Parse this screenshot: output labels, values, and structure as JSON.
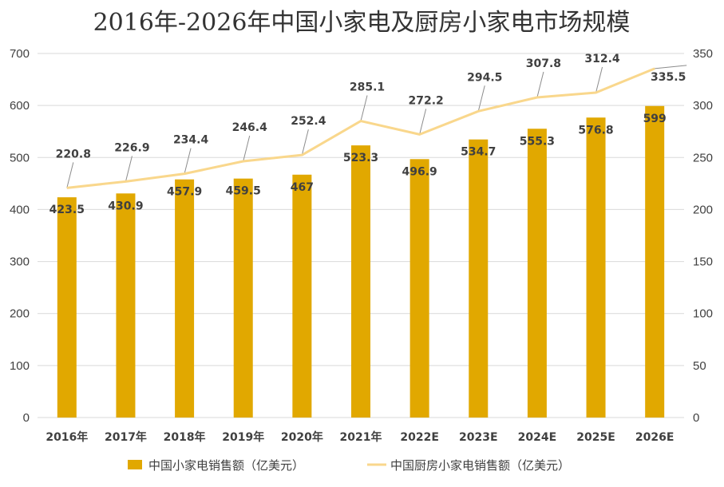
{
  "chart_data": {
    "type": "bar",
    "title": "2016年-2026年中国小家电及厨房小家电市场规模",
    "categories": [
      "2016年",
      "2017年",
      "2018年",
      "2019年",
      "2020年",
      "2021年",
      "2022E",
      "2023E",
      "2024E",
      "2025E",
      "2026E"
    ],
    "series": [
      {
        "name": "中国小家电销售额（亿美元）",
        "type": "bar",
        "axis": "left",
        "color": "#E1A800",
        "values": [
          423.5,
          430.9,
          457.9,
          459.5,
          467,
          523.3,
          496.9,
          534.7,
          555.3,
          576.8,
          599
        ]
      },
      {
        "name": "中国厨房小家电销售额（亿美元）",
        "type": "line",
        "axis": "right",
        "color": "#F9D78C",
        "values": [
          220.8,
          226.9,
          234.4,
          246.4,
          252.4,
          285.1,
          272.2,
          294.5,
          307.8,
          312.4,
          335.5
        ]
      }
    ],
    "y_left": {
      "ylim": [
        0,
        700
      ],
      "ticks": [
        0,
        100,
        200,
        300,
        400,
        500,
        600,
        700
      ]
    },
    "y_right": {
      "ylim": [
        0,
        350
      ],
      "ticks": [
        0,
        50,
        100,
        150,
        200,
        250,
        300,
        350
      ]
    },
    "grid": true,
    "legend_position": "bottom"
  }
}
